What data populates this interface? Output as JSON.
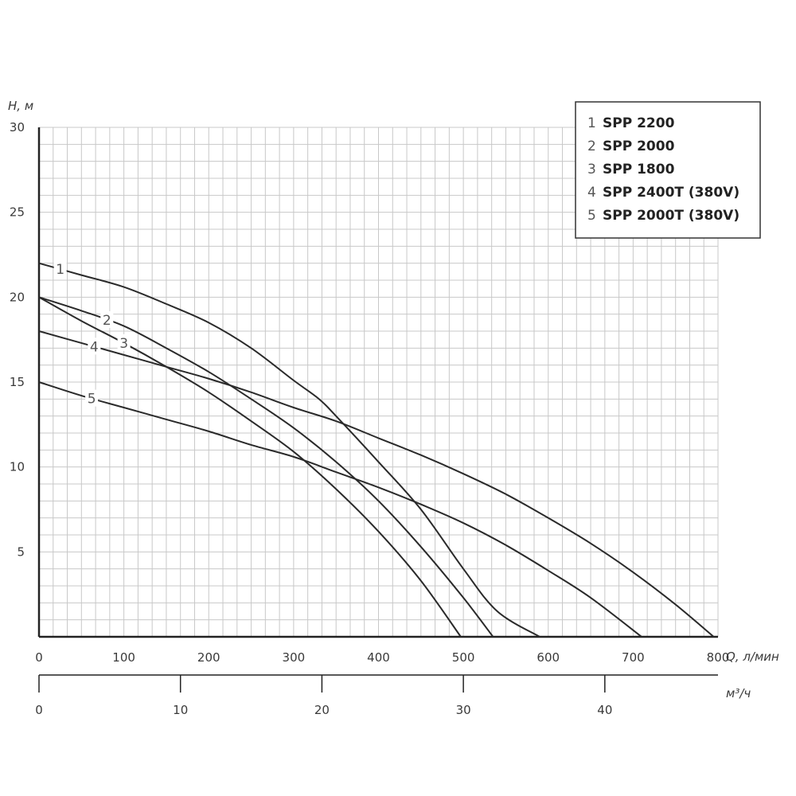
{
  "chart_data": {
    "type": "line",
    "ylabel": "Н, м",
    "xlabel": "Q, л/мин",
    "xlabel2": "м³/ч",
    "xlim": [
      0,
      800
    ],
    "ylim": [
      0,
      30
    ],
    "x2lim": [
      0,
      48
    ],
    "y_ticks": [
      "30",
      "25",
      "20",
      "15",
      "10",
      "5"
    ],
    "x_ticks": [
      "0",
      "100",
      "200",
      "300",
      "400",
      "500",
      "600",
      "700",
      "800"
    ],
    "x2_ticks": [
      "0",
      "10",
      "20",
      "30",
      "40"
    ],
    "grid": true,
    "legend_position": "top-right",
    "series": [
      {
        "id": "1",
        "name": "SPP 2200",
        "x": [
          0,
          50,
          100,
          150,
          200,
          250,
          300,
          330,
          350,
          400,
          450,
          500,
          540,
          590
        ],
        "y": [
          22,
          21.3,
          20.6,
          19.6,
          18.5,
          17.0,
          15.1,
          14.0,
          13.0,
          10.3,
          7.5,
          4.0,
          1.5,
          0
        ]
      },
      {
        "id": "2",
        "name": "SPP 2000",
        "x": [
          0,
          50,
          100,
          150,
          200,
          250,
          300,
          350,
          400,
          450,
          500,
          535
        ],
        "y": [
          20,
          19.2,
          18.3,
          17.0,
          15.6,
          14.0,
          12.3,
          10.3,
          8.0,
          5.3,
          2.3,
          0
        ]
      },
      {
        "id": "3",
        "name": "SPP 1800",
        "x": [
          0,
          50,
          100,
          150,
          200,
          250,
          300,
          350,
          400,
          450,
          497
        ],
        "y": [
          20,
          18.6,
          17.3,
          15.9,
          14.4,
          12.7,
          10.9,
          8.7,
          6.2,
          3.3,
          0
        ]
      },
      {
        "id": "4",
        "name": "SPP 2400T (380V)",
        "x": [
          0,
          50,
          100,
          150,
          200,
          250,
          300,
          350,
          400,
          450,
          500,
          550,
          600,
          650,
          700,
          750,
          795
        ],
        "y": [
          18,
          17.3,
          16.6,
          15.9,
          15.2,
          14.4,
          13.5,
          12.7,
          11.7,
          10.7,
          9.6,
          8.4,
          7.0,
          5.5,
          3.8,
          1.9,
          0
        ]
      },
      {
        "id": "5",
        "name": "SPP 2000T (380V)",
        "x": [
          0,
          50,
          100,
          150,
          200,
          250,
          300,
          350,
          400,
          450,
          500,
          550,
          600,
          650,
          710
        ],
        "y": [
          15,
          14.2,
          13.5,
          12.8,
          12.1,
          11.3,
          10.6,
          9.7,
          8.8,
          7.8,
          6.7,
          5.4,
          3.9,
          2.3,
          0
        ]
      }
    ],
    "curve_label_positions_q": [
      25,
      80,
      100,
      65,
      62
    ]
  },
  "legend": [
    {
      "num": "1",
      "name": "SPP 2200"
    },
    {
      "num": "2",
      "name": "SPP 2000"
    },
    {
      "num": "3",
      "name": "SPP 1800"
    },
    {
      "num": "4",
      "name": "SPP 2400T (380V)"
    },
    {
      "num": "5",
      "name": "SPP 2000T (380V)"
    }
  ],
  "colors": {
    "curve": "#2a2a2a",
    "grid": "#c8c8c8",
    "axis": "#222222"
  }
}
